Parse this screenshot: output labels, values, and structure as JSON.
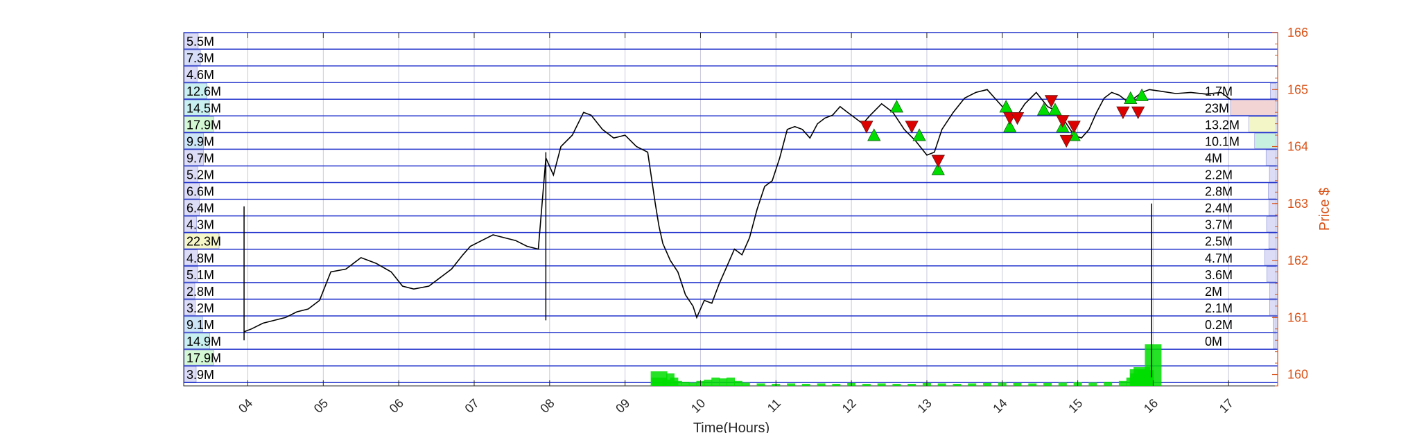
{
  "chart_data": {
    "type": "line",
    "xlabel": "Time(Hours)",
    "ylabel_right": "Price $",
    "xlim": [
      3.15,
      17.65
    ],
    "ylim": [
      159.8,
      166.0
    ],
    "x_ticks": [
      "04",
      "05",
      "06",
      "07",
      "08",
      "09",
      "10",
      "11",
      "12",
      "13",
      "14",
      "15",
      "16",
      "17"
    ],
    "x_tick_values": [
      4,
      5,
      6,
      7,
      8,
      9,
      10,
      11,
      12,
      13,
      14,
      15,
      16,
      17
    ],
    "y_ticks": [
      "160",
      "161",
      "162",
      "163",
      "164",
      "165",
      "166"
    ],
    "y_tick_values": [
      160,
      161,
      162,
      163,
      164,
      165,
      166
    ],
    "colors": {
      "price": "#000000",
      "grid": "#c8c8dc",
      "volume_row": "#2233cc",
      "axis_right": "#d95319",
      "buy": "#00dd00",
      "sell": "#dd0000"
    },
    "price_series": {
      "name": "",
      "x": [
        3.95,
        4.05,
        4.2,
        4.35,
        4.5,
        4.65,
        4.8,
        4.95,
        5.1,
        5.3,
        5.5,
        5.7,
        5.9,
        6.05,
        6.2,
        6.4,
        6.55,
        6.7,
        6.85,
        6.95,
        7.1,
        7.25,
        7.4,
        7.55,
        7.7,
        7.85,
        7.95,
        8.05,
        8.15,
        8.3,
        8.45,
        8.55,
        8.7,
        8.85,
        9.0,
        9.15,
        9.3,
        9.4,
        9.45,
        9.5,
        9.6,
        9.7,
        9.8,
        9.9,
        9.95,
        10.05,
        10.15,
        10.25,
        10.35,
        10.45,
        10.55,
        10.65,
        10.75,
        10.85,
        10.95,
        11.05,
        11.15,
        11.25,
        11.35,
        11.45,
        11.55,
        11.65,
        11.75,
        11.85,
        11.95,
        12.05,
        12.15,
        12.25,
        12.4,
        12.55,
        12.7,
        12.85,
        13.0,
        13.1,
        13.2,
        13.35,
        13.5,
        13.65,
        13.8,
        13.9,
        14.0,
        14.1,
        14.2,
        14.3,
        14.45,
        14.6,
        14.75,
        14.85,
        14.95,
        15.05,
        15.15,
        15.25,
        15.35,
        15.45,
        15.55,
        15.65,
        15.75,
        15.85,
        15.95,
        16.1,
        16.3,
        16.5,
        16.7,
        16.9,
        17.05,
        17.15
      ],
      "y": [
        160.75,
        160.8,
        160.9,
        160.95,
        161.0,
        161.1,
        161.15,
        161.3,
        161.8,
        161.85,
        162.05,
        161.95,
        161.8,
        161.55,
        161.5,
        161.55,
        161.7,
        161.85,
        162.1,
        162.25,
        162.35,
        162.45,
        162.4,
        162.35,
        162.25,
        162.2,
        163.8,
        163.5,
        164.0,
        164.2,
        164.6,
        164.55,
        164.3,
        164.15,
        164.2,
        164.0,
        163.9,
        163.0,
        162.6,
        162.3,
        162.0,
        161.8,
        161.4,
        161.2,
        161.0,
        161.3,
        161.25,
        161.6,
        161.9,
        162.2,
        162.1,
        162.4,
        162.9,
        163.3,
        163.4,
        163.8,
        164.3,
        164.35,
        164.3,
        164.15,
        164.4,
        164.5,
        164.55,
        164.7,
        164.6,
        164.5,
        164.4,
        164.55,
        164.75,
        164.6,
        164.3,
        164.1,
        163.85,
        163.9,
        164.3,
        164.6,
        164.85,
        164.95,
        165.0,
        164.85,
        164.7,
        164.5,
        164.55,
        164.75,
        164.95,
        164.7,
        164.6,
        164.4,
        164.2,
        164.15,
        164.3,
        164.6,
        164.85,
        164.95,
        164.9,
        164.8,
        164.85,
        164.95,
        165.0,
        164.97,
        164.93,
        164.95,
        164.92,
        164.95,
        164.8,
        164.7
      ]
    },
    "buy_markers": [
      [
        12.3,
        164.2
      ],
      [
        12.6,
        164.7
      ],
      [
        12.9,
        164.2
      ],
      [
        13.15,
        163.6
      ],
      [
        14.05,
        164.7
      ],
      [
        14.1,
        164.35
      ],
      [
        14.55,
        164.65
      ],
      [
        14.7,
        164.65
      ],
      [
        14.8,
        164.35
      ],
      [
        14.95,
        164.2
      ],
      [
        15.7,
        164.85
      ],
      [
        15.85,
        164.9
      ]
    ],
    "sell_markers": [
      [
        12.2,
        164.35
      ],
      [
        12.8,
        164.35
      ],
      [
        13.15,
        163.75
      ],
      [
        14.1,
        164.5
      ],
      [
        14.2,
        164.5
      ],
      [
        14.65,
        164.8
      ],
      [
        14.8,
        164.45
      ],
      [
        14.85,
        164.1
      ],
      [
        14.95,
        164.35
      ],
      [
        15.6,
        164.6
      ],
      [
        15.8,
        164.6
      ]
    ],
    "volume_profile_left": {
      "labels": [
        "5.5M",
        "7.3M",
        "4.6M",
        "12.6M",
        "14.5M",
        "17.9M",
        "9.9M",
        "9.7M",
        "5.2M",
        "6.6M",
        "6.4M",
        "4.3M",
        "22.3M",
        "4.8M",
        "5.1M",
        "2.8M",
        "3.2M",
        "9.1M",
        "14.9M",
        "17.9M",
        "3.9M"
      ],
      "values": [
        5.5,
        7.3,
        4.6,
        12.6,
        14.5,
        17.9,
        9.9,
        9.7,
        5.2,
        6.6,
        6.4,
        4.3,
        22.3,
        4.8,
        5.1,
        2.8,
        3.2,
        9.1,
        14.9,
        17.9,
        3.9
      ],
      "colors": [
        "#dcdcf7",
        "#d6def7",
        "#dcdcf7",
        "#c8f0f0",
        "#c8f0f0",
        "#d4f7d4",
        "#cce6f7",
        "#dcdcf7",
        "#dcdcf7",
        "#dcdcf7",
        "#dcdcf7",
        "#dcdcf7",
        "#f5f7c8",
        "#dcdcf7",
        "#dcdcf7",
        "#dcdcf7",
        "#dcdcf7",
        "#cce6f7",
        "#c8f0f0",
        "#d4f7d4",
        "#dcdcf7"
      ]
    },
    "volume_profile_right": {
      "labels": [
        "1.7M",
        "23M",
        "13.2M",
        "10.1M",
        "4M",
        "2.2M",
        "2.8M",
        "2.4M",
        "3.7M",
        "2.5M",
        "4.7M",
        "3.6M",
        "2M",
        "2.1M",
        "0.2M",
        "0M"
      ],
      "values": [
        1.7,
        23,
        13.2,
        10.1,
        4,
        2.2,
        2.8,
        2.4,
        3.7,
        2.5,
        4.7,
        3.6,
        2,
        2.1,
        0.2,
        0
      ],
      "colors": [
        "#dcdcf7",
        "#f2d4d4",
        "#f3f7c8",
        "#c8f0e0",
        "#dcdcf7",
        "#dcdcf7",
        "#dcdcf7",
        "#dcdcf7",
        "#dcdcf7",
        "#dcdcf7",
        "#dcdcf7",
        "#dcdcf7",
        "#dcdcf7",
        "#dcdcf7",
        "#dcdcf7",
        "#dcdcf7"
      ]
    },
    "volume_bars": {
      "x": [
        9.4,
        9.45,
        9.5,
        9.55,
        9.6,
        9.65,
        9.7,
        9.8,
        9.9,
        10.0,
        10.1,
        10.2,
        10.3,
        10.4,
        10.5,
        10.6,
        10.8,
        11.0,
        11.2,
        11.4,
        11.6,
        11.8,
        12.0,
        12.2,
        12.4,
        12.6,
        12.8,
        13.0,
        13.2,
        13.4,
        13.6,
        13.8,
        14.0,
        14.2,
        14.4,
        14.6,
        14.8,
        15.0,
        15.2,
        15.4,
        15.6,
        15.7,
        15.75,
        15.8,
        15.85,
        15.9,
        15.95,
        16.0
      ],
      "values": [
        0.2,
        0.35,
        0.2,
        0.15,
        0.3,
        0.2,
        0.12,
        0.1,
        0.08,
        0.12,
        0.15,
        0.2,
        0.18,
        0.2,
        0.12,
        0.08,
        0.06,
        0.05,
        0.06,
        0.05,
        0.06,
        0.05,
        0.07,
        0.05,
        0.06,
        0.05,
        0.05,
        0.07,
        0.06,
        0.05,
        0.06,
        0.07,
        0.08,
        0.07,
        0.06,
        0.07,
        0.08,
        0.09,
        0.08,
        0.1,
        0.12,
        0.2,
        0.3,
        0.4,
        0.45,
        0.38,
        0.3,
        1.0
      ]
    }
  }
}
